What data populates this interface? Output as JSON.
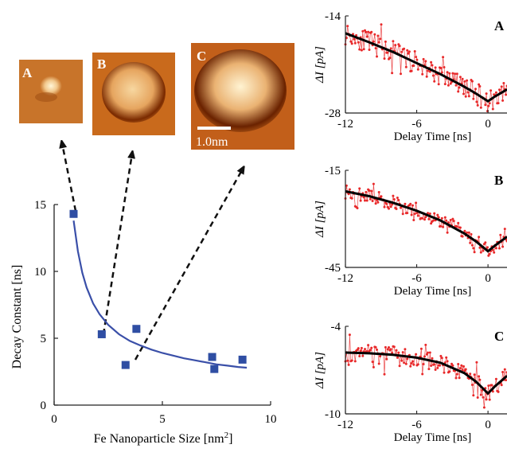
{
  "colors": {
    "scatter_marker": "#2f4ea3",
    "fit_curve": "#3a4fa8",
    "trace_points": "#e8292a",
    "trace_fit": "#000000",
    "stm_dark": "#7a2a00",
    "stm_mid": "#c96a1c",
    "stm_light": "#fff2cf"
  },
  "stm_images": [
    {
      "label": "A"
    },
    {
      "label": "B"
    },
    {
      "label": "C",
      "scale_bar": "1.0nm"
    }
  ],
  "chart_data": [
    {
      "type": "scatter",
      "xlabel": "Fe Nanoparticle Size [nm²]",
      "xlabel_main": "Fe Nanoparticle Size [nm",
      "xlabel_sup": "2",
      "xlabel_close": "]",
      "ylabel": "Decay Constant [ns]",
      "xlim": [
        0,
        10
      ],
      "ylim": [
        0,
        15
      ],
      "x_ticks": [
        "0",
        "5",
        "10"
      ],
      "y_ticks": [
        "0",
        "5",
        "10",
        "15"
      ],
      "series": [
        {
          "x": [
            0.9,
            2.2,
            3.3,
            3.8,
            7.3,
            7.4,
            8.7
          ],
          "y": [
            14.3,
            5.3,
            3.0,
            5.7,
            3.6,
            2.7,
            3.4
          ]
        }
      ],
      "fit_curve": {
        "x": [
          0.9,
          1.1,
          1.3,
          1.5,
          1.8,
          2.1,
          2.5,
          3.0,
          3.5,
          4.0,
          4.5,
          5.0,
          5.5,
          6.0,
          6.5,
          7.0,
          7.5,
          8.0,
          8.5,
          8.9
        ],
        "y": [
          13.8,
          11.5,
          9.9,
          8.8,
          7.6,
          6.8,
          6.0,
          5.3,
          4.8,
          4.45,
          4.15,
          3.9,
          3.7,
          3.5,
          3.35,
          3.2,
          3.05,
          2.95,
          2.85,
          2.8
        ]
      }
    },
    {
      "type": "line",
      "panel_label": "A",
      "xlabel": "Delay Time [ns]",
      "ylabel": "ΔI [pA]",
      "xlim": [
        -12,
        1.6
      ],
      "ylim": [
        -28,
        -14
      ],
      "x_ticks": [
        "-12",
        "-6",
        "0"
      ],
      "y_ticks": [
        "-14",
        "-28"
      ],
      "fit": {
        "x": [
          -12,
          -10,
          -8,
          -6,
          -4,
          -2,
          -1,
          0,
          0.5,
          1.6
        ],
        "y": [
          -16.5,
          -17.8,
          -19.2,
          -20.8,
          -22.4,
          -24.2,
          -25.2,
          -26.3,
          -25.7,
          -24.6
        ]
      },
      "noise": 1.6
    },
    {
      "type": "line",
      "panel_label": "B",
      "xlabel": "Delay Time [ns]",
      "ylabel": "ΔI [pA]",
      "xlim": [
        -12,
        1.6
      ],
      "ylim": [
        -45,
        -15
      ],
      "x_ticks": [
        "-12",
        "-6",
        "0"
      ],
      "y_ticks": [
        "-15",
        "-45"
      ],
      "fit": {
        "x": [
          -12,
          -10,
          -8,
          -6,
          -4,
          -2,
          -1,
          0,
          0.5,
          1.6
        ],
        "y": [
          -21.5,
          -23.0,
          -25.0,
          -27.5,
          -30.5,
          -34.5,
          -37.0,
          -40.0,
          -38.5,
          -35.5
        ]
      },
      "noise": 2.2
    },
    {
      "type": "line",
      "panel_label": "C",
      "xlabel": "Delay Time [ns]",
      "ylabel": "ΔI [pA]",
      "xlim": [
        -12,
        1.6
      ],
      "ylim": [
        -10,
        -4
      ],
      "x_ticks": [
        "-12",
        "-6",
        "0"
      ],
      "y_ticks": [
        "-4",
        "-10"
      ],
      "fit": {
        "x": [
          -12,
          -10,
          -8,
          -6,
          -4,
          -2,
          -1,
          0,
          0.6,
          1.6
        ],
        "y": [
          -5.8,
          -5.85,
          -5.95,
          -6.15,
          -6.5,
          -7.2,
          -7.8,
          -8.6,
          -8.1,
          -7.4
        ]
      },
      "noise": 0.6
    }
  ]
}
